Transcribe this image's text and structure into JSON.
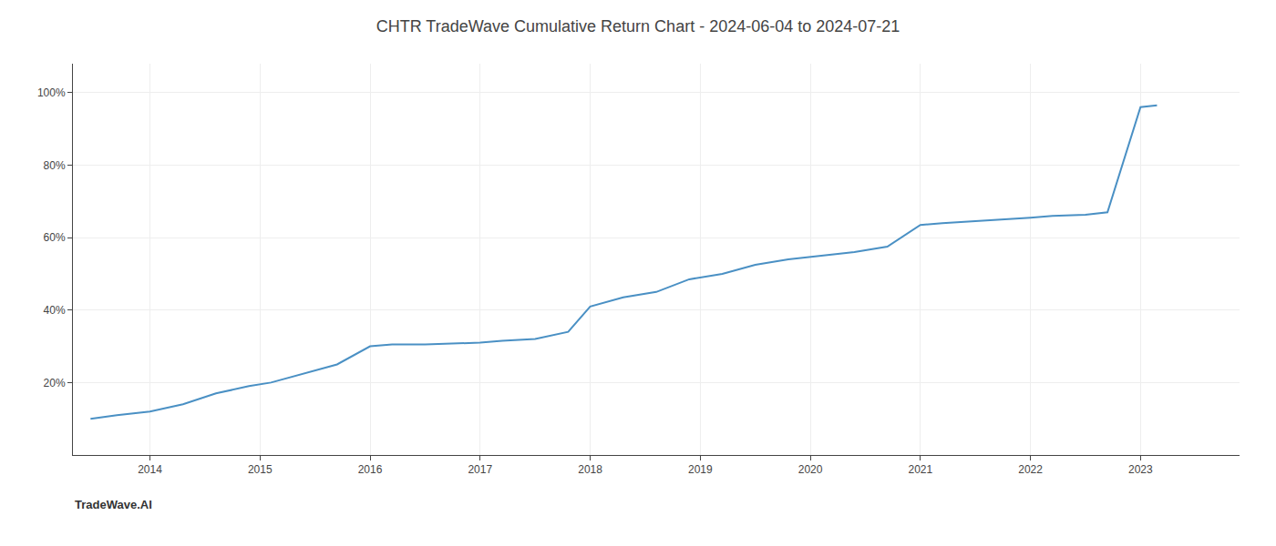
{
  "chart_data": {
    "type": "line",
    "title": "CHTR TradeWave Cumulative Return Chart - 2024-06-04 to 2024-07-21",
    "annotations": [
      "TradeWave.AI"
    ],
    "x": [
      2013.46,
      2013.7,
      2014.0,
      2014.3,
      2014.6,
      2014.9,
      2015.1,
      2015.4,
      2015.7,
      2016.0,
      2016.2,
      2016.5,
      2016.8,
      2017.0,
      2017.2,
      2017.5,
      2017.8,
      2018.0,
      2018.3,
      2018.6,
      2018.9,
      2019.2,
      2019.5,
      2019.8,
      2020.1,
      2020.4,
      2020.7,
      2021.0,
      2021.2,
      2021.5,
      2021.8,
      2022.0,
      2022.2,
      2022.5,
      2022.7,
      2023.0,
      2023.15
    ],
    "values": [
      10.0,
      11.0,
      12.0,
      14.0,
      17.0,
      19.0,
      20.0,
      22.5,
      25.0,
      30.0,
      30.5,
      30.5,
      30.8,
      31.0,
      31.5,
      32.0,
      34.0,
      41.0,
      43.5,
      45.0,
      48.5,
      50.0,
      52.5,
      54.0,
      55.0,
      56.0,
      57.5,
      63.5,
      64.0,
      64.5,
      65.0,
      65.5,
      66.0,
      66.3,
      67.0,
      96.0,
      96.5
    ],
    "color": "#4a90c4",
    "xlim": [
      2013.3,
      2023.9
    ],
    "xticks": [
      2014,
      2015,
      2016,
      2017,
      2018,
      2019,
      2020,
      2021,
      2022,
      2023
    ],
    "ylim": [
      0,
      108
    ],
    "yticks": [
      {
        "value": 20,
        "label": "20%"
      },
      {
        "value": 40,
        "label": "40%"
      },
      {
        "value": 60,
        "label": "60%"
      },
      {
        "value": 80,
        "label": "80%"
      },
      {
        "value": 100,
        "label": "100%"
      }
    ],
    "grid": true
  }
}
